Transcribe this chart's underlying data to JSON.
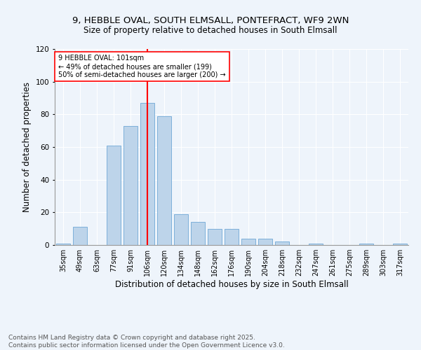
{
  "title_line1": "9, HEBBLE OVAL, SOUTH ELMSALL, PONTEFRACT, WF9 2WN",
  "title_line2": "Size of property relative to detached houses in South Elmsall",
  "xlabel": "Distribution of detached houses by size in South Elmsall",
  "ylabel": "Number of detached properties",
  "categories": [
    "35sqm",
    "49sqm",
    "63sqm",
    "77sqm",
    "91sqm",
    "106sqm",
    "120sqm",
    "134sqm",
    "148sqm",
    "162sqm",
    "176sqm",
    "190sqm",
    "204sqm",
    "218sqm",
    "232sqm",
    "247sqm",
    "261sqm",
    "275sqm",
    "289sqm",
    "303sqm",
    "317sqm"
  ],
  "values": [
    1,
    11,
    0,
    61,
    73,
    87,
    79,
    19,
    14,
    10,
    10,
    4,
    4,
    2,
    0,
    1,
    0,
    0,
    1,
    0,
    1
  ],
  "bar_color": "#BDD4EA",
  "bar_edge_color": "#6FA8D6",
  "vline_x_index": 5,
  "vline_color": "red",
  "annotation_text": "9 HEBBLE OVAL: 101sqm\n← 49% of detached houses are smaller (199)\n50% of semi-detached houses are larger (200) →",
  "annotation_box_color": "white",
  "annotation_box_edge": "red",
  "ylim": [
    0,
    120
  ],
  "yticks": [
    0,
    20,
    40,
    60,
    80,
    100,
    120
  ],
  "background_color": "#EEF4FB",
  "footer_line1": "Contains HM Land Registry data © Crown copyright and database right 2025.",
  "footer_line2": "Contains public sector information licensed under the Open Government Licence v3.0.",
  "title_fontsize": 9.5,
  "subtitle_fontsize": 8.5,
  "axis_label_fontsize": 8.5,
  "tick_fontsize": 7,
  "annotation_fontsize": 7,
  "footer_fontsize": 6.5,
  "fig_width": 6.0,
  "fig_height": 5.0,
  "fig_dpi": 100
}
